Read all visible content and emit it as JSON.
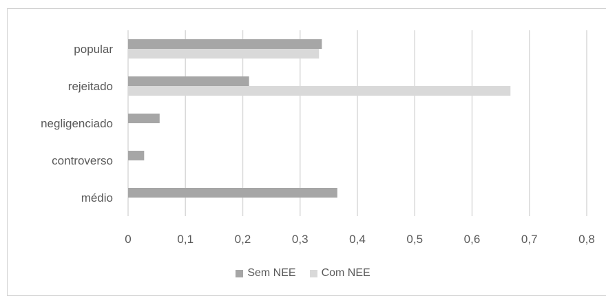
{
  "chart_data": {
    "type": "bar",
    "orientation": "horizontal",
    "categories": [
      "popular",
      "rejeitado",
      "negligenciado",
      "controverso",
      "médio"
    ],
    "series": [
      {
        "name": "Sem NEE",
        "color": "#a6a6a6",
        "values": [
          0.338,
          0.211,
          0.055,
          0.028,
          0.365
        ]
      },
      {
        "name": "Com NEE",
        "color": "#d9d9d9",
        "values": [
          0.333,
          0.667,
          0,
          0,
          0
        ]
      }
    ],
    "x_ticks": [
      "0",
      "0,1",
      "0,2",
      "0,3",
      "0,4",
      "0,5",
      "0,6",
      "0,7",
      "0,8"
    ],
    "xlim": [
      0,
      0.8
    ],
    "grid": true,
    "legend_position": "bottom"
  }
}
